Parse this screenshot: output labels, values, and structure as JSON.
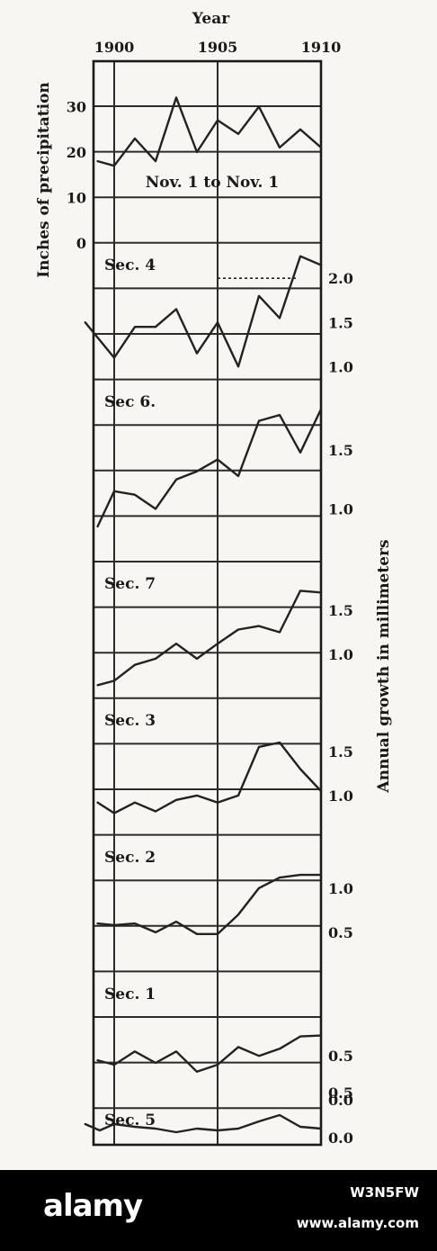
{
  "chart_data": {
    "type": "line",
    "xlabel": "Year",
    "x_ticks": [
      "1900",
      "1905",
      "1910"
    ],
    "x_tick_values": [
      1900,
      1905,
      1910
    ],
    "xlim": [
      1899,
      1910
    ],
    "panels": [
      {
        "name": "",
        "annotation": "Nov. 1 to Nov. 1",
        "ylabel": "Inches of precipitation",
        "axis_side": "left",
        "ylim": [
          0,
          40
        ],
        "yticks": [
          "30",
          "20",
          "10",
          "0"
        ],
        "ytick_values": [
          30,
          20,
          10,
          0
        ],
        "x": [
          1899.2,
          1900,
          1901,
          1902,
          1903,
          1904,
          1905,
          1906,
          1907,
          1908,
          1909,
          1910
        ],
        "values": [
          18,
          17,
          23,
          18,
          32,
          20,
          27,
          24,
          30,
          21,
          25,
          21
        ]
      },
      {
        "name": "Sec. 4",
        "axis_side": "right",
        "ylim": [
          0.85,
          2.4
        ],
        "yticks": [
          "2.0",
          "1.5",
          "1.0"
        ],
        "ytick_values": [
          2.0,
          1.5,
          1.0
        ],
        "x": [
          1898.6,
          1900,
          1901,
          1902,
          1903,
          1904,
          1905,
          1906,
          1907,
          1908,
          1909,
          1910
        ],
        "values": [
          1.5,
          1.1,
          1.45,
          1.45,
          1.65,
          1.15,
          1.5,
          1.0,
          1.8,
          1.55,
          2.25,
          2.15
        ],
        "reference_line": 2.0
      },
      {
        "name": "Sec 6.",
        "axis_side": "right",
        "ylim": [
          0.55,
          2.1
        ],
        "yticks": [
          "1.5",
          "1.0"
        ],
        "ytick_values": [
          1.5,
          1.0
        ],
        "x": [
          1899.2,
          1900,
          1901,
          1902,
          1903,
          1904,
          1905,
          1906,
          1907,
          1908,
          1909,
          1910
        ],
        "values": [
          0.85,
          1.15,
          1.12,
          1.0,
          1.25,
          1.32,
          1.42,
          1.28,
          1.75,
          1.8,
          1.48,
          1.85
        ]
      },
      {
        "name": "Sec. 7",
        "axis_side": "right",
        "ylim": [
          0.5,
          2.05
        ],
        "yticks": [
          "1.5",
          "1.0"
        ],
        "ytick_values": [
          1.5,
          1.0
        ],
        "x": [
          1899.2,
          1900,
          1901,
          1902,
          1903,
          1904,
          1905,
          1906,
          1907,
          1908,
          1909,
          1910
        ],
        "values": [
          0.65,
          0.7,
          0.88,
          0.95,
          1.12,
          0.95,
          1.12,
          1.28,
          1.32,
          1.25,
          1.72,
          1.7
        ]
      },
      {
        "name": "Sec. 3",
        "axis_side": "right",
        "ylim": [
          0.55,
          2.1
        ],
        "yticks": [
          "1.5",
          "1.0"
        ],
        "ytick_values": [
          1.5,
          1.0
        ],
        "x": [
          1899.2,
          1900,
          1901,
          1902,
          1903,
          1904,
          1905,
          1906,
          1907,
          1908,
          1909,
          1910
        ],
        "values": [
          0.92,
          0.8,
          0.92,
          0.82,
          0.95,
          1.0,
          0.92,
          1.0,
          1.55,
          1.6,
          1.3,
          1.05
        ]
      },
      {
        "name": "Sec. 2",
        "axis_side": "right",
        "ylim": [
          0.05,
          1.6
        ],
        "yticks": [
          "1.0",
          "0.5"
        ],
        "ytick_values": [
          1.0,
          0.5
        ],
        "x": [
          1899.2,
          1900,
          1901,
          1902,
          1903,
          1904,
          1905,
          1906,
          1907,
          1908,
          1909,
          1910
        ],
        "values": [
          0.6,
          0.58,
          0.6,
          0.5,
          0.62,
          0.48,
          0.48,
          0.7,
          1.0,
          1.12,
          1.15,
          1.15
        ]
      },
      {
        "name": "Sec. 1",
        "axis_side": "right",
        "ylim": [
          -0.1,
          1.45
        ],
        "yticks": [
          "0.5",
          "0.0"
        ],
        "ytick_values": [
          0.5,
          0.0
        ],
        "x": [
          1899.2,
          1900,
          1901,
          1902,
          1903,
          1904,
          1905,
          1906,
          1907,
          1908,
          1909,
          1910
        ],
        "values": [
          0.45,
          0.4,
          0.55,
          0.42,
          0.55,
          0.32,
          0.4,
          0.6,
          0.5,
          0.58,
          0.72,
          0.73
        ]
      },
      {
        "name": "Sec. 5",
        "axis_side": "right",
        "ylim": [
          -0.08,
          1.47
        ],
        "yticks": [
          "0.5",
          "0.0"
        ],
        "ytick_values": [
          0.5,
          0.0
        ],
        "x": [
          1898.6,
          1899.3,
          1900,
          1901,
          1902,
          1903,
          1904,
          1905,
          1906,
          1907,
          1908,
          1909,
          1910
        ],
        "values": [
          0.15,
          0.08,
          0.15,
          0.12,
          0.1,
          0.06,
          0.1,
          0.08,
          0.1,
          0.18,
          0.25,
          0.12,
          0.1
        ]
      }
    ],
    "right_axis_label": "Annual growth in millimeters",
    "grid": true
  },
  "watermark": {
    "brand": "alamy",
    "image_id": "W3N5FW",
    "site": "www.alamy.com"
  }
}
